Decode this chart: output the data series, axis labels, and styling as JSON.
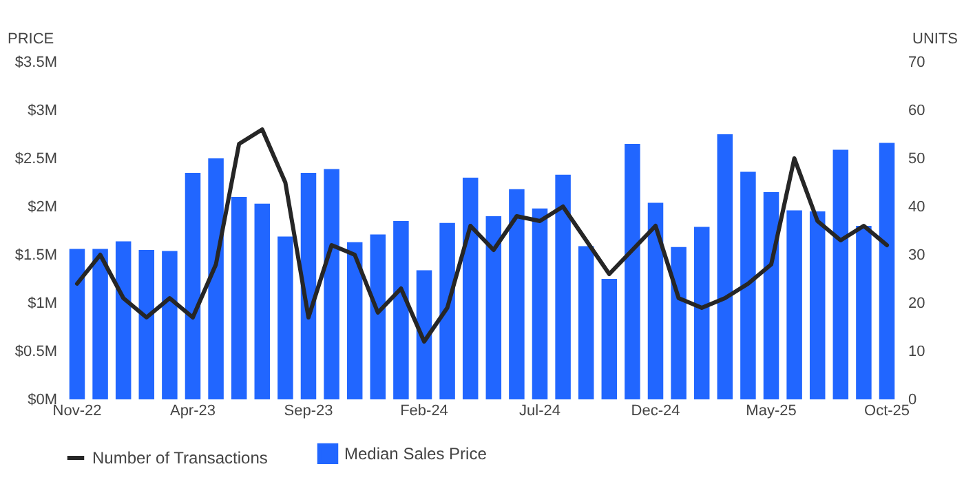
{
  "chart_data": {
    "type": "bar",
    "ylabel": "PRICE",
    "y2label": "UNITS",
    "legend": "bottom",
    "categories": [
      "Nov-22",
      null,
      null,
      null,
      null,
      "Apr-23",
      null,
      null,
      null,
      null,
      "Sep-23",
      null,
      null,
      null,
      null,
      "Feb-24",
      null,
      null,
      null,
      null,
      "Jul-24",
      null,
      null,
      null,
      null,
      "Dec-24",
      null,
      null,
      null,
      null,
      "May-25",
      null,
      null,
      null,
      null,
      "Oct-25"
    ],
    "ylim": [
      0,
      3500000
    ],
    "yticks": [
      {
        "value": 0,
        "label": "$0M"
      },
      {
        "value": 500000,
        "label": "$0.5M"
      },
      {
        "value": 1000000,
        "label": "$1M"
      },
      {
        "value": 1500000,
        "label": "$1.5M"
      },
      {
        "value": 2000000,
        "label": "$2M"
      },
      {
        "value": 2500000,
        "label": "$2.5M"
      },
      {
        "value": 3000000,
        "label": "$3M"
      },
      {
        "value": 3500000,
        "label": "$3.5M"
      }
    ],
    "y2lim": [
      0,
      70
    ],
    "y2ticks": [
      0,
      10,
      20,
      30,
      40,
      50,
      60,
      70
    ],
    "series": [
      {
        "name": "Number of Transactions",
        "type": "line",
        "axis": "y2",
        "color": "#262626",
        "values": [
          24,
          30,
          21,
          17,
          21,
          17,
          28,
          53,
          56,
          45,
          17,
          32,
          30,
          18,
          23,
          12,
          19,
          36,
          31,
          38,
          37,
          40,
          33,
          26,
          31,
          36,
          21,
          19,
          21,
          24,
          28,
          50,
          37,
          33,
          36,
          32
        ]
      },
      {
        "name": "Median Sales Price",
        "color": "#2166ff",
        "values": [
          1560000,
          1560000,
          1640000,
          1550000,
          1540000,
          2350000,
          2500000,
          2100000,
          2030000,
          1690000,
          2350000,
          2390000,
          1630000,
          1710000,
          1850000,
          1340000,
          1830000,
          2300000,
          1900000,
          2180000,
          1980000,
          2330000,
          1590000,
          1250000,
          2650000,
          2040000,
          1580000,
          1790000,
          2750000,
          2360000,
          2150000,
          1960000,
          1950000,
          2590000,
          1800000,
          2660000
        ]
      }
    ]
  }
}
